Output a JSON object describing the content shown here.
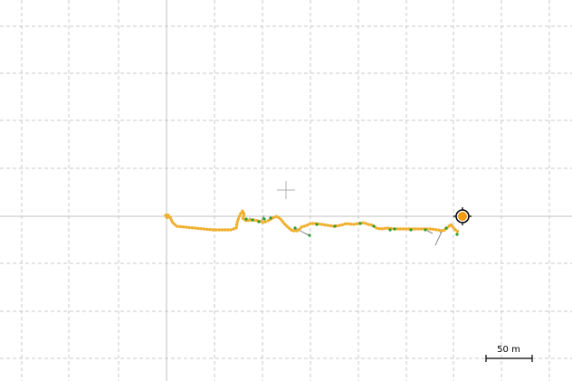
{
  "map": {
    "background_color": "#ffffff",
    "grid": {
      "dashed_line_color": "#c8c8c8",
      "axis_line_color": "#c0c0c0"
    },
    "track": {
      "color": "#f0b030",
      "waypoint_color": "#2e9b2e",
      "connector_color": "#8a8a8a"
    },
    "current_position_marker": {
      "fill_color": "#f39c12",
      "ring_color": "#000000",
      "icon": "current-position-icon"
    },
    "crosshair": {
      "color": "#b0b0b0",
      "icon": "crosshair-icon"
    },
    "scale_bar": {
      "label": "50 m",
      "color": "#000000"
    }
  }
}
